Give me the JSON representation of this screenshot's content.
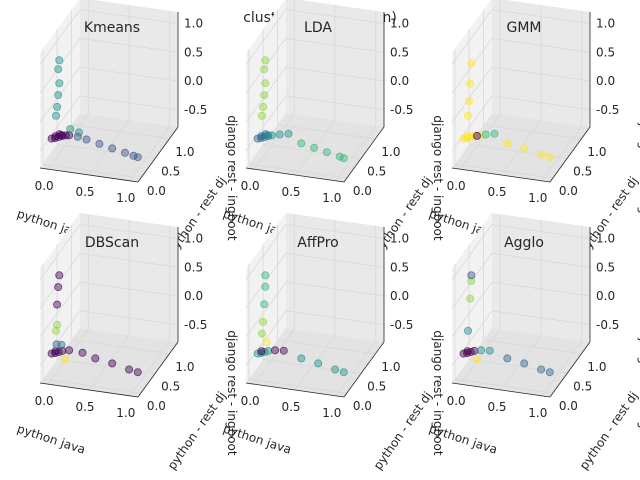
{
  "figure": {
    "suptitle": "clusterd (php sklearn)"
  },
  "colors": {
    "pane_left": "#f2f2f2",
    "pane_right": "#e9e9e9",
    "pane_floor": "#e3e3e3",
    "grid": "#d8d8d8",
    "axis_line": "#262626",
    "viridis_purple": "#440154",
    "viridis_blue": "#31688e",
    "viridis_teal": "#21918c",
    "viridis_green": "#35b779",
    "viridis_lime": "#90d743",
    "viridis_yellow": "#fde725"
  },
  "chart_data": [
    {
      "type": "scatter",
      "title": "Kmeans",
      "xlabel": "python java",
      "ylabel": "python  -  rest dj",
      "zlabel": "django rest  -  ingboot",
      "x_ticks": [
        "0.0",
        "0.5",
        "1.0"
      ],
      "y_ticks": [
        "0.0",
        "0.5",
        "1.0"
      ],
      "z_ticks": [
        "-0.5",
        "0.0",
        "0.5",
        "1.0"
      ],
      "grid": true,
      "series": [
        {
          "color": "#440154",
          "points": [
            [
              0.0,
              0.02,
              -0.35
            ],
            [
              0.04,
              0.03,
              -0.34
            ],
            [
              0.08,
              0.04,
              -0.32
            ],
            [
              0.12,
              0.05,
              -0.3
            ],
            [
              0.16,
              0.06,
              -0.29
            ],
            [
              0.2,
              0.06,
              -0.28
            ],
            [
              0.02,
              0.1,
              -0.36
            ],
            [
              0.06,
              0.12,
              -0.33
            ],
            [
              0.1,
              0.08,
              -0.31
            ]
          ]
        },
        {
          "color": "#3b528b",
          "points": [
            [
              0.3,
              0.08,
              -0.3
            ],
            [
              0.4,
              0.1,
              -0.34
            ],
            [
              0.55,
              0.12,
              -0.4
            ],
            [
              0.7,
              0.14,
              -0.46
            ],
            [
              0.85,
              0.16,
              -0.52
            ],
            [
              1.0,
              0.18,
              -0.58
            ],
            [
              0.95,
              0.17,
              -0.56
            ]
          ]
        },
        {
          "color": "#21918c",
          "points": [
            [
              0.05,
              0.03,
              0.05
            ],
            [
              0.06,
              0.04,
              0.2
            ],
            [
              0.07,
              0.05,
              0.4
            ],
            [
              0.08,
              0.06,
              0.6
            ],
            [
              0.07,
              0.05,
              0.85
            ],
            [
              0.08,
              0.06,
              1.0
            ],
            [
              0.2,
              0.1,
              -0.2
            ],
            [
              0.3,
              0.12,
              -0.25
            ]
          ]
        }
      ]
    },
    {
      "type": "scatter",
      "title": "LDA",
      "xlabel": "python java",
      "ylabel": "python  -  rest dj",
      "zlabel": "django rest  -  ingboot",
      "x_ticks": [
        "0.0",
        "0.5",
        "1.0"
      ],
      "y_ticks": [
        "0.0",
        "0.5",
        "1.0"
      ],
      "z_ticks": [
        "-0.5",
        "0.0",
        "0.5",
        "1.0"
      ],
      "grid": true,
      "series": [
        {
          "color": "#31688e",
          "points": [
            [
              0.0,
              0.02,
              -0.35
            ],
            [
              0.04,
              0.03,
              -0.34
            ],
            [
              0.08,
              0.04,
              -0.32
            ],
            [
              0.12,
              0.05,
              -0.3
            ],
            [
              0.02,
              0.1,
              -0.36
            ],
            [
              0.06,
              0.12,
              -0.33
            ]
          ]
        },
        {
          "color": "#21918c",
          "points": [
            [
              0.16,
              0.06,
              -0.29
            ],
            [
              0.25,
              0.08,
              -0.27
            ],
            [
              0.35,
              0.1,
              -0.25
            ],
            [
              0.1,
              0.08,
              -0.31
            ]
          ]
        },
        {
          "color": "#35b779",
          "points": [
            [
              0.5,
              0.12,
              -0.4
            ],
            [
              0.65,
              0.14,
              -0.46
            ],
            [
              0.8,
              0.16,
              -0.52
            ],
            [
              0.95,
              0.18,
              -0.58
            ],
            [
              1.0,
              0.18,
              -0.6
            ]
          ]
        },
        {
          "color": "#90d743",
          "points": [
            [
              0.05,
              0.03,
              0.05
            ],
            [
              0.06,
              0.04,
              0.2
            ],
            [
              0.07,
              0.05,
              0.4
            ],
            [
              0.08,
              0.06,
              0.6
            ],
            [
              0.07,
              0.05,
              0.85
            ],
            [
              0.08,
              0.06,
              1.0
            ]
          ]
        }
      ]
    },
    {
      "type": "scatter",
      "title": "GMM",
      "xlabel": "python java",
      "ylabel": "python  -  rest dj",
      "zlabel": "django rest  -  ingboot",
      "x_ticks": [
        "0.0",
        "0.5",
        "1.0"
      ],
      "y_ticks": [
        "0.0",
        "0.5",
        "1.0"
      ],
      "z_ticks": [
        "-0.5",
        "0.0",
        "0.5",
        "1.0"
      ],
      "grid": true,
      "series": [
        {
          "color": "#fde725",
          "points": [
            [
              0.0,
              0.02,
              -0.35
            ],
            [
              0.04,
              0.03,
              -0.34
            ],
            [
              0.08,
              0.04,
              -0.32
            ],
            [
              0.12,
              0.05,
              -0.3
            ],
            [
              0.2,
              0.06,
              -0.28
            ],
            [
              0.5,
              0.12,
              -0.4
            ],
            [
              0.7,
              0.14,
              -0.46
            ],
            [
              0.9,
              0.16,
              -0.54
            ],
            [
              1.0,
              0.18,
              -0.58
            ],
            [
              0.05,
              0.03,
              0.05
            ],
            [
              0.06,
              0.04,
              0.3
            ],
            [
              0.07,
              0.05,
              0.6
            ],
            [
              0.08,
              0.06,
              0.95
            ],
            [
              0.02,
              0.1,
              -0.36
            ]
          ]
        },
        {
          "color": "#35b779",
          "points": [
            [
              0.25,
              0.08,
              -0.27
            ],
            [
              0.35,
              0.1,
              -0.25
            ]
          ]
        },
        {
          "color": "#440154",
          "points": [
            [
              0.15,
              0.06,
              -0.3
            ]
          ]
        }
      ]
    },
    {
      "type": "scatter",
      "title": "DBScan",
      "xlabel": "python java",
      "ylabel": "python  -  rest dj",
      "zlabel": "django rest  -  ingboot",
      "x_ticks": [
        "0.0",
        "0.5",
        "1.0"
      ],
      "y_ticks": [
        "0.0",
        "0.5",
        "1.0"
      ],
      "z_ticks": [
        "-0.5",
        "0.0",
        "0.5",
        "1.0"
      ],
      "grid": true,
      "series": [
        {
          "color": "#440154",
          "points": [
            [
              0.0,
              0.02,
              -0.35
            ],
            [
              0.04,
              0.03,
              -0.34
            ],
            [
              0.08,
              0.04,
              -0.32
            ],
            [
              0.12,
              0.05,
              -0.3
            ],
            [
              0.2,
              0.06,
              -0.28
            ],
            [
              0.35,
              0.1,
              -0.32
            ],
            [
              0.5,
              0.12,
              -0.4
            ],
            [
              0.7,
              0.14,
              -0.46
            ],
            [
              0.9,
              0.16,
              -0.54
            ],
            [
              1.0,
              0.18,
              -0.58
            ],
            [
              0.06,
              0.04,
              0.5
            ],
            [
              0.07,
              0.05,
              0.8
            ],
            [
              0.08,
              0.06,
              1.0
            ],
            [
              0.02,
              0.1,
              -0.36
            ]
          ]
        },
        {
          "color": "#31688e",
          "points": [
            [
              0.05,
              0.05,
              -0.2
            ],
            [
              0.1,
              0.08,
              -0.22
            ]
          ]
        },
        {
          "color": "#90d743",
          "points": [
            [
              0.05,
              0.03,
              0.05
            ],
            [
              0.06,
              0.04,
              0.15
            ]
          ]
        },
        {
          "color": "#fde725",
          "points": [
            [
              0.15,
              0.06,
              -0.45
            ]
          ]
        }
      ]
    },
    {
      "type": "scatter",
      "title": "AffPro",
      "xlabel": "python java",
      "ylabel": "python  -  rest dj",
      "zlabel": "django rest  -  ingboot",
      "x_ticks": [
        "0.0",
        "0.5",
        "1.0"
      ],
      "y_ticks": [
        "0.0",
        "0.5",
        "1.0"
      ],
      "z_ticks": [
        "-0.5",
        "0.0",
        "0.5",
        "1.0"
      ],
      "grid": true,
      "series": [
        {
          "color": "#21918c",
          "points": [
            [
              0.0,
              0.02,
              -0.35
            ],
            [
              0.04,
              0.03,
              -0.34
            ],
            [
              0.08,
              0.04,
              -0.32
            ],
            [
              0.12,
              0.05,
              -0.3
            ],
            [
              0.5,
              0.12,
              -0.4
            ],
            [
              0.7,
              0.14,
              -0.46
            ],
            [
              0.9,
              0.16,
              -0.54
            ],
            [
              1.0,
              0.18,
              -0.58
            ]
          ]
        },
        {
          "color": "#440154",
          "points": [
            [
              0.2,
              0.06,
              -0.28
            ],
            [
              0.3,
              0.08,
              -0.28
            ],
            [
              0.02,
              0.1,
              -0.36
            ]
          ]
        },
        {
          "color": "#90d743",
          "points": [
            [
              0.05,
              0.03,
              0.0
            ],
            [
              0.06,
              0.04,
              0.2
            ]
          ]
        },
        {
          "color": "#35b779",
          "points": [
            [
              0.07,
              0.05,
              0.5
            ],
            [
              0.08,
              0.06,
              0.8
            ],
            [
              0.08,
              0.06,
              1.0
            ]
          ]
        },
        {
          "color": "#fde725",
          "points": [
            [
              0.1,
              0.05,
              -0.15
            ]
          ]
        }
      ]
    },
    {
      "type": "scatter",
      "title": "Agglo",
      "xlabel": "python java",
      "ylabel": "python  -  rest dj",
      "zlabel": "django rest  -  ingboot",
      "x_ticks": [
        "0.0",
        "0.5",
        "1.0"
      ],
      "y_ticks": [
        "0.0",
        "0.5",
        "1.0"
      ],
      "z_ticks": [
        "-0.5",
        "0.0",
        "0.5",
        "1.0"
      ],
      "grid": true,
      "series": [
        {
          "color": "#440154",
          "points": [
            [
              0.0,
              0.02,
              -0.35
            ],
            [
              0.04,
              0.03,
              -0.34
            ],
            [
              0.08,
              0.04,
              -0.32
            ],
            [
              0.12,
              0.05,
              -0.3
            ],
            [
              0.02,
              0.1,
              -0.36
            ]
          ]
        },
        {
          "color": "#31688e",
          "points": [
            [
              0.5,
              0.12,
              -0.4
            ],
            [
              0.7,
              0.14,
              -0.46
            ],
            [
              0.9,
              0.16,
              -0.54
            ],
            [
              1.0,
              0.18,
              -0.58
            ]
          ]
        },
        {
          "color": "#21918c",
          "points": [
            [
              0.2,
              0.06,
              -0.28
            ],
            [
              0.3,
              0.08,
              -0.28
            ],
            [
              0.05,
              0.03,
              0.05
            ]
          ]
        },
        {
          "color": "#90d743",
          "points": [
            [
              0.07,
              0.05,
              0.6
            ],
            [
              0.08,
              0.06,
              0.9
            ]
          ]
        },
        {
          "color": "#fde725",
          "points": [
            [
              0.15,
              0.06,
              -0.45
            ]
          ]
        },
        {
          "color": "#3b528b",
          "points": [
            [
              0.08,
              0.06,
              1.0
            ]
          ]
        }
      ]
    }
  ]
}
